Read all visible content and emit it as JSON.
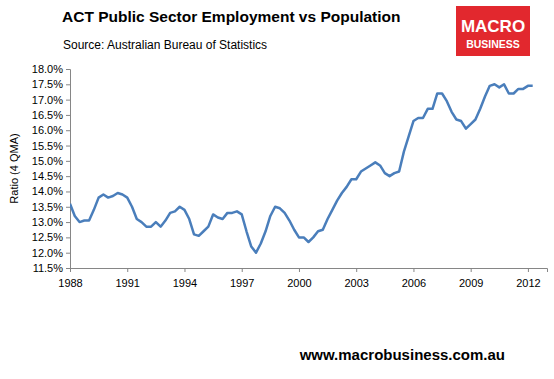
{
  "chart_data": {
    "type": "line",
    "title": "ACT Public Sector Employment vs Population",
    "subtitle": "Source: Australian Bureau of Statistics",
    "y_label": "Ratio (4 QMA)",
    "color": "#4a7ebb",
    "grid": false,
    "x": [
      1988,
      1988.25,
      1988.5,
      1988.75,
      1989,
      1989.25,
      1989.5,
      1989.75,
      1990,
      1990.25,
      1990.5,
      1990.75,
      1991,
      1991.25,
      1991.5,
      1991.75,
      1992,
      1992.25,
      1992.5,
      1992.75,
      1993,
      1993.25,
      1993.5,
      1993.75,
      1994,
      1994.25,
      1994.5,
      1994.75,
      1995,
      1995.25,
      1995.5,
      1995.75,
      1996,
      1996.25,
      1996.5,
      1996.75,
      1997,
      1997.25,
      1997.5,
      1997.75,
      1998,
      1998.25,
      1998.5,
      1998.75,
      1999,
      1999.25,
      1999.5,
      1999.75,
      2000,
      2000.25,
      2000.5,
      2000.75,
      2001,
      2001.25,
      2001.5,
      2001.75,
      2002,
      2002.25,
      2002.5,
      2002.75,
      2003,
      2003.25,
      2003.5,
      2003.75,
      2004,
      2004.25,
      2004.5,
      2004.75,
      2005,
      2005.25,
      2005.5,
      2005.75,
      2006,
      2006.25,
      2006.5,
      2006.75,
      2007,
      2007.25,
      2007.5,
      2007.75,
      2008,
      2008.25,
      2008.5,
      2008.75,
      2009,
      2009.25,
      2009.5,
      2009.75,
      2010,
      2010.25,
      2010.5,
      2010.75,
      2011,
      2011.25,
      2011.5,
      2011.75,
      2012,
      2012.25
    ],
    "values": [
      13.6,
      13.2,
      13.0,
      13.05,
      13.05,
      13.4,
      13.8,
      13.9,
      13.8,
      13.85,
      13.95,
      13.9,
      13.8,
      13.5,
      13.1,
      13.0,
      12.85,
      12.85,
      13.0,
      12.85,
      13.05,
      13.3,
      13.35,
      13.5,
      13.4,
      13.1,
      12.6,
      12.55,
      12.7,
      12.85,
      13.25,
      13.15,
      13.1,
      13.3,
      13.3,
      13.35,
      13.25,
      12.7,
      12.2,
      12.0,
      12.3,
      12.7,
      13.2,
      13.5,
      13.45,
      13.3,
      13.05,
      12.75,
      12.5,
      12.5,
      12.35,
      12.5,
      12.7,
      12.75,
      13.1,
      13.4,
      13.7,
      13.95,
      14.15,
      14.4,
      14.4,
      14.65,
      14.75,
      14.85,
      14.95,
      14.85,
      14.6,
      14.5,
      14.6,
      14.65,
      15.3,
      15.8,
      16.3,
      16.4,
      16.4,
      16.7,
      16.7,
      17.2,
      17.2,
      16.95,
      16.6,
      16.35,
      16.3,
      16.05,
      16.2,
      16.35,
      16.7,
      17.1,
      17.45,
      17.5,
      17.4,
      17.5,
      17.2,
      17.2,
      17.35,
      17.35,
      17.45,
      17.45
    ],
    "xlim": [
      1988,
      2013
    ],
    "xticks": [
      1988,
      1991,
      1994,
      1997,
      2000,
      2003,
      2006,
      2009,
      2012
    ],
    "ylim": [
      11.5,
      18.0
    ],
    "yticks": [
      {
        "value": 11.5,
        "label": "11.5%"
      },
      {
        "value": 12.0,
        "label": "12.0%"
      },
      {
        "value": 12.5,
        "label": "12.5%"
      },
      {
        "value": 13.0,
        "label": "13.0%"
      },
      {
        "value": 13.5,
        "label": "13.5%"
      },
      {
        "value": 14.0,
        "label": "14.0%"
      },
      {
        "value": 14.5,
        "label": "14.5%"
      },
      {
        "value": 15.0,
        "label": "15.0%"
      },
      {
        "value": 15.5,
        "label": "15.5%"
      },
      {
        "value": 16.0,
        "label": "16.0%"
      },
      {
        "value": 16.5,
        "label": "16.5%"
      },
      {
        "value": 17.0,
        "label": "17.0%"
      },
      {
        "value": 17.5,
        "label": "17.5%"
      },
      {
        "value": 18.0,
        "label": "18.0%"
      }
    ]
  },
  "branding": {
    "logo_line1": "MACRO",
    "logo_line2": "BUSINESS",
    "footer": "www.macrobusiness.com.au"
  }
}
